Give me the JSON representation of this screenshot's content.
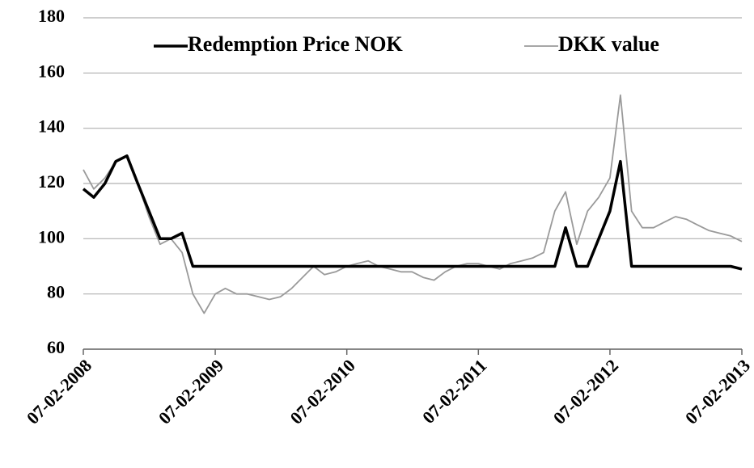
{
  "chart_data": {
    "type": "line",
    "x": [
      "2008-02-07",
      "2008-03-07",
      "2008-04-07",
      "2008-05-07",
      "2008-06-07",
      "2008-07-07",
      "2008-08-07",
      "2008-09-07",
      "2008-10-07",
      "2008-11-07",
      "2008-12-07",
      "2009-01-07",
      "2009-02-07",
      "2009-03-07",
      "2009-04-07",
      "2009-05-07",
      "2009-06-07",
      "2009-07-07",
      "2009-08-07",
      "2009-09-07",
      "2009-10-07",
      "2009-11-07",
      "2009-12-07",
      "2010-01-07",
      "2010-02-07",
      "2010-03-07",
      "2010-04-07",
      "2010-05-07",
      "2010-06-07",
      "2010-07-07",
      "2010-08-07",
      "2010-09-07",
      "2010-10-07",
      "2010-11-07",
      "2010-12-07",
      "2011-01-07",
      "2011-02-07",
      "2011-03-07",
      "2011-04-07",
      "2011-05-07",
      "2011-06-07",
      "2011-07-07",
      "2011-08-07",
      "2011-09-07",
      "2011-10-07",
      "2011-11-07",
      "2011-12-07",
      "2012-01-07",
      "2012-02-07",
      "2012-03-07",
      "2012-04-07",
      "2012-05-07",
      "2012-06-07",
      "2012-07-07",
      "2012-08-07",
      "2012-09-07",
      "2012-10-07",
      "2012-11-07",
      "2012-12-07",
      "2013-01-07",
      "2013-02-07"
    ],
    "series": [
      {
        "name": "Redemption Price NOK",
        "color": "#000000",
        "width": 3.5,
        "values": [
          118,
          115,
          120,
          128,
          130,
          120,
          110,
          100,
          100,
          102,
          90,
          90,
          90,
          90,
          90,
          90,
          90,
          90,
          90,
          90,
          90,
          90,
          90,
          90,
          90,
          90,
          90,
          90,
          90,
          90,
          90,
          90,
          90,
          90,
          90,
          90,
          90,
          90,
          90,
          90,
          90,
          90,
          90,
          90,
          104,
          90,
          90,
          100,
          110,
          128,
          90,
          90,
          90,
          90,
          90,
          90,
          90,
          90,
          90,
          90,
          89
        ]
      },
      {
        "name": "DKK value",
        "color": "#9a9a9a",
        "width": 1.8,
        "values": [
          125,
          118,
          122,
          128,
          130,
          120,
          108,
          98,
          100,
          95,
          80,
          73,
          80,
          82,
          80,
          80,
          79,
          78,
          79,
          82,
          86,
          90,
          87,
          88,
          90,
          91,
          92,
          90,
          89,
          88,
          88,
          86,
          85,
          88,
          90,
          91,
          91,
          90,
          89,
          91,
          92,
          93,
          95,
          110,
          117,
          98,
          110,
          115,
          122,
          152,
          110,
          104,
          104,
          106,
          108,
          107,
          105,
          103,
          102,
          101,
          99
        ]
      }
    ],
    "xlim": [
      "2008-02-07",
      "2013-02-07"
    ],
    "xticks": [
      {
        "value": "2008-02-07",
        "label": "07-02-2008"
      },
      {
        "value": "2009-02-07",
        "label": "07-02-2009"
      },
      {
        "value": "2010-02-07",
        "label": "07-02-2010"
      },
      {
        "value": "2011-02-07",
        "label": "07-02-2011"
      },
      {
        "value": "2012-02-07",
        "label": "07-02-2012"
      },
      {
        "value": "2013-02-07",
        "label": "07-02-2013"
      }
    ],
    "ylim": [
      60,
      180
    ],
    "yticks": [
      60,
      80,
      100,
      120,
      140,
      160,
      180
    ],
    "grid": true,
    "legend": "top"
  }
}
